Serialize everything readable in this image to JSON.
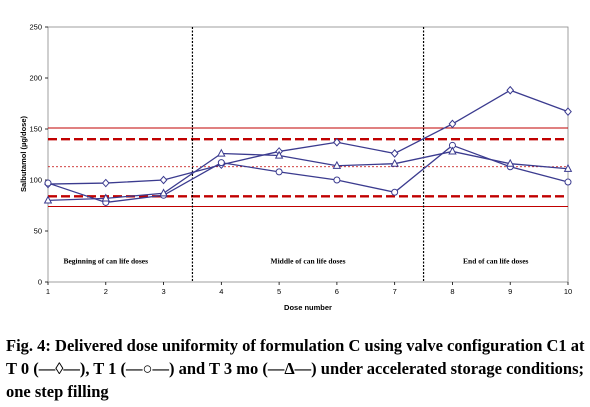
{
  "chart_data": {
    "type": "line",
    "xlabel": "Dose number",
    "ylabel": "Salbutamol (µg/dose)",
    "x": [
      1,
      2,
      3,
      4,
      5,
      6,
      7,
      8,
      9,
      10
    ],
    "xlim": [
      1,
      10
    ],
    "ylim": [
      0,
      250
    ],
    "yticks": [
      0,
      50,
      100,
      150,
      200,
      250
    ],
    "grid": false,
    "series": [
      {
        "marker": "diamond",
        "color": "#3b3b8f",
        "values": [
          96,
          97,
          100,
          115,
          128,
          137,
          126,
          155,
          188,
          167
        ]
      },
      {
        "marker": "circle",
        "color": "#3b3b8f",
        "values": [
          97,
          78,
          85,
          117,
          108,
          100,
          88,
          134,
          113,
          98
        ]
      },
      {
        "marker": "triangle",
        "color": "#3b3b8f",
        "values": [
          80,
          82,
          87,
          126,
          124,
          114,
          116,
          128,
          116,
          111
        ]
      }
    ],
    "reference_lines": [
      {
        "y": 151,
        "style": "solid",
        "color": "#c00000"
      },
      {
        "y": 140,
        "style": "dashed-thick",
        "color": "#c00000"
      },
      {
        "y": 113,
        "style": "dotted",
        "color": "#c00000"
      },
      {
        "y": 84,
        "style": "dashed-thick",
        "color": "#c00000"
      },
      {
        "y": 74,
        "style": "solid",
        "color": "#c00000"
      }
    ],
    "dividers": [
      3.5,
      7.5
    ],
    "segments": [
      {
        "label": "Beginning of can life doses",
        "x": 2
      },
      {
        "label": "Middle of can life doses",
        "x": 5.5
      },
      {
        "label": "End of can life doses",
        "x": 8.75
      }
    ]
  },
  "caption": "Fig. 4: Delivered dose uniformity of formulation C using valve configuration C1 at T 0 (—◊—), T 1 (—○—) and T 3 mo (—Δ—) under accelerated storage conditions; one step filling"
}
